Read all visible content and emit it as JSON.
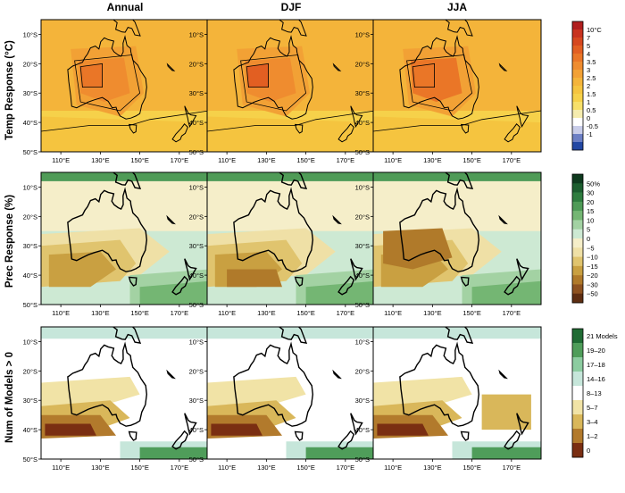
{
  "columns": [
    "Annual",
    "DJF",
    "JJA"
  ],
  "rows": [
    {
      "title": "Temp Response (°C)",
      "kind": "temp",
      "colorbar": {
        "labels": [
          "10°C",
          "7",
          "5",
          "4",
          "3.5",
          "3",
          "2.5",
          "2",
          "1.5",
          "1",
          "0.5",
          "0",
          "-0.5",
          "-1"
        ],
        "colors": [
          "#b01e1e",
          "#c8331f",
          "#d6481f",
          "#e25f22",
          "#ea7627",
          "#ef8c2f",
          "#f2a135",
          "#f4b43a",
          "#f5c43f",
          "#f6d14a",
          "#f7e06a",
          "#f5ecae",
          "#ffffff",
          "#c9cde9",
          "#6c7fc4",
          "#2247a3"
        ]
      },
      "contours": [
        "1.5",
        "2.0",
        "3.0"
      ]
    },
    {
      "title": "Prec Response (%)",
      "kind": "prec",
      "colorbar": {
        "labels": [
          "50%",
          "30",
          "20",
          "15",
          "10",
          "5",
          "0",
          "−5",
          "−10",
          "−15",
          "−20",
          "−30",
          "−50"
        ],
        "colors": [
          "#0e3a1e",
          "#1c5e2f",
          "#2f7d3f",
          "#4f9b57",
          "#74b673",
          "#a3d2a3",
          "#cde9d3",
          "#f5eec9",
          "#efe0a6",
          "#e0c46e",
          "#c9a041",
          "#b07a2a",
          "#8e5220",
          "#5e2e12"
        ]
      }
    },
    {
      "title": "Num of Models > 0",
      "kind": "models",
      "colorbar": {
        "labels": [
          "21 Models",
          "19–20",
          "17–18",
          "14–16",
          "8–13",
          "5–7",
          "3–4",
          "1–2",
          "0"
        ],
        "colors": [
          "#1f6b33",
          "#4f9d5a",
          "#8ccca0",
          "#c6e6da",
          "#ffffff",
          "#f1e3a6",
          "#d9b75a",
          "#b27a2c",
          "#7a2e12"
        ]
      }
    }
  ],
  "x_ticks": [
    "110°E",
    "130°E",
    "150°E",
    "170°E"
  ],
  "y_ticks": [
    "10°S",
    "20°S",
    "30°S",
    "40°S",
    "50°S"
  ]
}
